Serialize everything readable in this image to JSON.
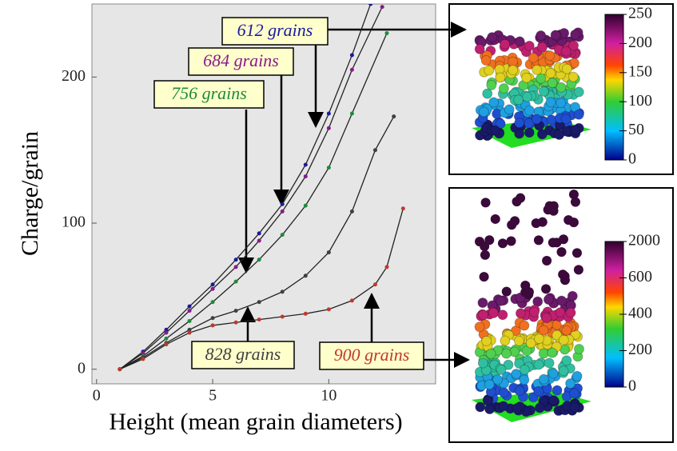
{
  "chart_data": {
    "type": "line",
    "xlabel": "Height (mean grain diameters)",
    "ylabel": "Charge/grain",
    "xlim": [
      -0.2,
      14.6
    ],
    "ylim": [
      -10,
      250
    ],
    "xticks": [
      0,
      5,
      10
    ],
    "yticks": [
      0,
      100,
      200
    ],
    "series": [
      {
        "name": "612 grains",
        "color": "#1a1aa0",
        "x": [
          1,
          2,
          3,
          4,
          5,
          6,
          7,
          8,
          9,
          10,
          11,
          11.8
        ],
        "values": [
          0,
          12,
          27,
          43,
          58,
          75,
          93,
          113,
          140,
          175,
          215,
          250
        ]
      },
      {
        "name": "684 grains",
        "color": "#8a1a8a",
        "x": [
          1,
          2,
          3,
          4,
          5,
          6,
          7,
          8,
          9,
          10,
          11,
          12.3
        ],
        "values": [
          0,
          11,
          25,
          40,
          55,
          70,
          88,
          108,
          132,
          165,
          205,
          248
        ]
      },
      {
        "name": "756 grains",
        "color": "#1f8a3a",
        "x": [
          1,
          2,
          3,
          4,
          5,
          6,
          7,
          8,
          9,
          10,
          11,
          12.5
        ],
        "values": [
          0,
          9,
          21,
          33,
          46,
          60,
          75,
          92,
          112,
          138,
          175,
          230
        ]
      },
      {
        "name": "828 grains",
        "color": "#404040",
        "x": [
          1,
          2,
          3,
          4,
          5,
          6,
          7,
          8,
          9,
          10,
          11,
          12,
          12.8
        ],
        "values": [
          0,
          8,
          18,
          27,
          35,
          40,
          46,
          53,
          64,
          80,
          108,
          150,
          173
        ]
      },
      {
        "name": "900 grains",
        "color": "#c0392b",
        "x": [
          1,
          2,
          3,
          4,
          5,
          6,
          7,
          8,
          9,
          10,
          11,
          12,
          12.5,
          13.2
        ],
        "values": [
          0,
          7,
          17,
          25,
          30,
          32,
          34,
          36,
          38,
          41,
          47,
          58,
          70,
          110
        ]
      }
    ],
    "colorbars": [
      {
        "ticks": [
          0,
          50,
          100,
          150,
          200,
          250
        ]
      },
      {
        "ticks": [
          0,
          200,
          400,
          600,
          2000
        ]
      }
    ]
  }
}
